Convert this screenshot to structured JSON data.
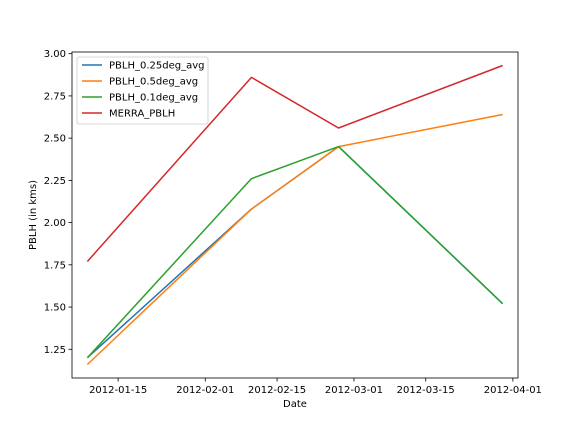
{
  "chart_data": {
    "type": "line",
    "title": "",
    "xlabel": "Date",
    "ylabel": "PBLH (in kms)",
    "x": [
      "2012-01-09",
      "2012-02-10",
      "2012-02-27",
      "2012-03-30"
    ],
    "xlim": [
      "2012-01-06",
      "2012-04-02"
    ],
    "ylim": [
      1.08,
      3.01
    ],
    "xticks": [
      "2012-01-15",
      "2012-02-01",
      "2012-02-15",
      "2012-03-01",
      "2012-03-15",
      "2012-04-01"
    ],
    "yticks": [
      "1.25",
      "1.50",
      "1.75",
      "2.00",
      "2.25",
      "2.50",
      "2.75",
      "3.00"
    ],
    "grid": false,
    "legend": "upper left",
    "series": [
      {
        "name": "PBLH_0.25deg_avg",
        "color": "#1f77b4",
        "values": [
          1.2,
          2.08,
          2.45,
          1.52
        ]
      },
      {
        "name": "PBLH_0.5deg_avg",
        "color": "#ff7f0e",
        "values": [
          1.16,
          2.08,
          2.45,
          2.64
        ]
      },
      {
        "name": "PBLH_0.1deg_avg",
        "color": "#2ca02c",
        "values": [
          1.2,
          2.26,
          2.45,
          1.52
        ]
      },
      {
        "name": "MERRA_PBLH",
        "color": "#d62728",
        "values": [
          1.77,
          2.86,
          2.56,
          2.93
        ]
      }
    ]
  }
}
